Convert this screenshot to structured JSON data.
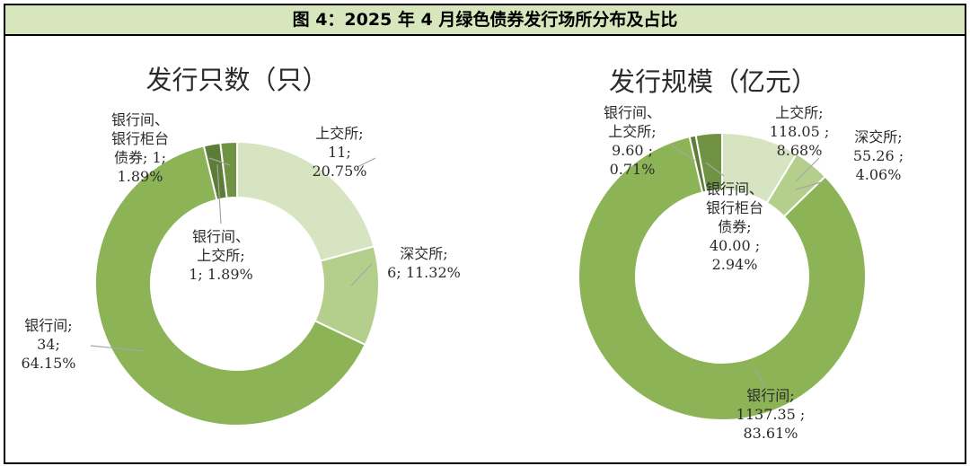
{
  "figure": {
    "title": "图 4：2025 年 4 月绿色债券发行场所分布及占比"
  },
  "chart_data": [
    {
      "type": "pie",
      "subtype": "donut",
      "title": "发行只数（只）",
      "unit": "只",
      "slices": [
        {
          "name": "上交所",
          "value": 11,
          "percent": 20.75,
          "color": "#d6e4c1",
          "label_lines": [
            "上交所;",
            "11;",
            "20.75%"
          ]
        },
        {
          "name": "深交所",
          "value": 6,
          "percent": 11.32,
          "color": "#b4cf8c",
          "label_lines": [
            "深交所;",
            "6; 11.32%"
          ]
        },
        {
          "name": "银行间",
          "value": 34,
          "percent": 64.15,
          "color": "#8cb456",
          "label_lines": [
            "银行间;",
            "34;",
            "64.15%"
          ]
        },
        {
          "name": "银行间、上交所",
          "value": 1,
          "percent": 1.89,
          "color": "#5d7c37",
          "label_lines": [
            "银行间、",
            "上交所;",
            "1; 1.89%"
          ]
        },
        {
          "name": "银行间、银行柜台债券",
          "value": 1,
          "percent": 1.89,
          "color": "#6f9243",
          "label_lines": [
            "银行间、",
            "银行柜台",
            "债券; 1;",
            "1.89%"
          ]
        }
      ]
    },
    {
      "type": "pie",
      "subtype": "donut",
      "title": "发行规模（亿元）",
      "unit": "亿元",
      "slices": [
        {
          "name": "上交所",
          "value": 118.05,
          "percent": 8.68,
          "color": "#d6e4c1",
          "label_lines": [
            "上交所;",
            "118.05 ;",
            "8.68%"
          ]
        },
        {
          "name": "深交所",
          "value": 55.26,
          "percent": 4.06,
          "color": "#b4cf8c",
          "label_lines": [
            "深交所;",
            "55.26 ;",
            "4.06%"
          ]
        },
        {
          "name": "银行间",
          "value": 1137.35,
          "percent": 83.61,
          "color": "#8cb456",
          "label_lines": [
            "银行间;",
            "1137.35 ;",
            "83.61%"
          ]
        },
        {
          "name": "银行间、上交所",
          "value": 9.6,
          "percent": 0.71,
          "color": "#5d7c37",
          "label_lines": [
            "银行间、",
            "上交所;",
            "9.60 ;",
            "0.71%"
          ]
        },
        {
          "name": "银行间、银行柜台债券",
          "value": 40.0,
          "percent": 2.94,
          "color": "#6f9243",
          "label_lines": [
            "银行间、",
            "银行柜台",
            "债券;",
            "40.00 ;",
            "2.94%"
          ]
        }
      ]
    }
  ]
}
